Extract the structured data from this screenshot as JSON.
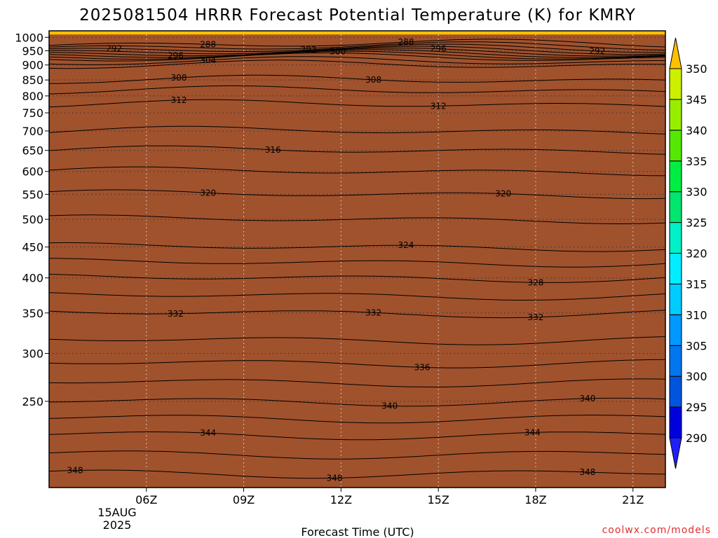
{
  "chart_data": {
    "type": "heatmap",
    "title": "2025081504 HRRR Forecast Potential Temperature (K) for KMRY",
    "xlabel": "Forecast Time (UTC)",
    "credit": "coolwx.com/models",
    "x_ticks": [
      {
        "hour": 6,
        "label": "06Z"
      },
      {
        "hour": 9,
        "label": "09Z"
      },
      {
        "hour": 12,
        "label": "12Z"
      },
      {
        "hour": 15,
        "label": "15Z"
      },
      {
        "hour": 18,
        "label": "18Z"
      },
      {
        "hour": 21,
        "label": "21Z"
      }
    ],
    "date_label_day": "15AUG",
    "date_label_year": "2025",
    "xlim_hours": [
      3,
      22
    ],
    "ylim_hpa": [
      1025,
      180
    ],
    "y_ticks": [
      250,
      300,
      350,
      400,
      450,
      500,
      550,
      600,
      650,
      700,
      750,
      800,
      850,
      900,
      950,
      1000
    ],
    "colorbar_levels": [
      290,
      295,
      300,
      305,
      310,
      315,
      320,
      325,
      330,
      335,
      340,
      345,
      350
    ],
    "colorbar_colors": [
      "#2020ff",
      "#0000dd",
      "#0055dd",
      "#0077ee",
      "#0099ff",
      "#00ccff",
      "#00eeff",
      "#00f0c8",
      "#00e66e",
      "#00ee44",
      "#55e800",
      "#99ee00",
      "#ccf000",
      "#fff000",
      "#ffc000"
    ],
    "surface_color": "#a0522d",
    "profile": [
      {
        "p": 1000,
        "theta": 286
      },
      {
        "p": 975,
        "theta": 288
      },
      {
        "p": 960,
        "theta": 291
      },
      {
        "p": 945,
        "theta": 295
      },
      {
        "p": 925,
        "theta": 302
      },
      {
        "p": 900,
        "theta": 306
      },
      {
        "p": 850,
        "theta": 308
      },
      {
        "p": 800,
        "theta": 311
      },
      {
        "p": 750,
        "theta": 313
      },
      {
        "p": 700,
        "theta": 314
      },
      {
        "p": 650,
        "theta": 316
      },
      {
        "p": 600,
        "theta": 318
      },
      {
        "p": 550,
        "theta": 320
      },
      {
        "p": 500,
        "theta": 322
      },
      {
        "p": 450,
        "theta": 324
      },
      {
        "p": 400,
        "theta": 328
      },
      {
        "p": 350,
        "theta": 332
      },
      {
        "p": 300,
        "theta": 335
      },
      {
        "p": 250,
        "theta": 340
      },
      {
        "p": 220,
        "theta": 344
      },
      {
        "p": 190,
        "theta": 348
      },
      {
        "p": 180,
        "theta": 350
      }
    ],
    "contour_levels": [
      288,
      290,
      292,
      294,
      296,
      298,
      300,
      302,
      304,
      306,
      308,
      310,
      312,
      314,
      316,
      318,
      320,
      322,
      324,
      326,
      328,
      330,
      332,
      334,
      336,
      338,
      340,
      342,
      344,
      346,
      348
    ],
    "contour_labels": [
      {
        "theta": 348,
        "hour": 3.8
      },
      {
        "theta": 348,
        "hour": 11.8
      },
      {
        "theta": 348,
        "hour": 19.6
      },
      {
        "theta": 344,
        "hour": 7.9
      },
      {
        "theta": 344,
        "hour": 17.9
      },
      {
        "theta": 340,
        "hour": 13.5
      },
      {
        "theta": 340,
        "hour": 19.6
      },
      {
        "theta": 336,
        "hour": 14.5
      },
      {
        "theta": 332,
        "hour": 6.9
      },
      {
        "theta": 332,
        "hour": 13.0
      },
      {
        "theta": 332,
        "hour": 18.0
      },
      {
        "theta": 328,
        "hour": 18.0
      },
      {
        "theta": 324,
        "hour": 14.0
      },
      {
        "theta": 320,
        "hour": 7.9
      },
      {
        "theta": 320,
        "hour": 17.0
      },
      {
        "theta": 316,
        "hour": 9.9
      },
      {
        "theta": 312,
        "hour": 7.0
      },
      {
        "theta": 312,
        "hour": 15.0
      },
      {
        "theta": 308,
        "hour": 7.0
      },
      {
        "theta": 308,
        "hour": 13.0
      },
      {
        "theta": 304,
        "hour": 7.9
      },
      {
        "theta": 300,
        "hour": 11.9
      },
      {
        "theta": 296,
        "hour": 6.9
      },
      {
        "theta": 296,
        "hour": 15.0
      },
      {
        "theta": 292,
        "hour": 5.0
      },
      {
        "theta": 292,
        "hour": 11.0
      },
      {
        "theta": 292,
        "hour": 19.9
      },
      {
        "theta": 288,
        "hour": 7.9
      },
      {
        "theta": 288,
        "hour": 14.0
      }
    ]
  }
}
